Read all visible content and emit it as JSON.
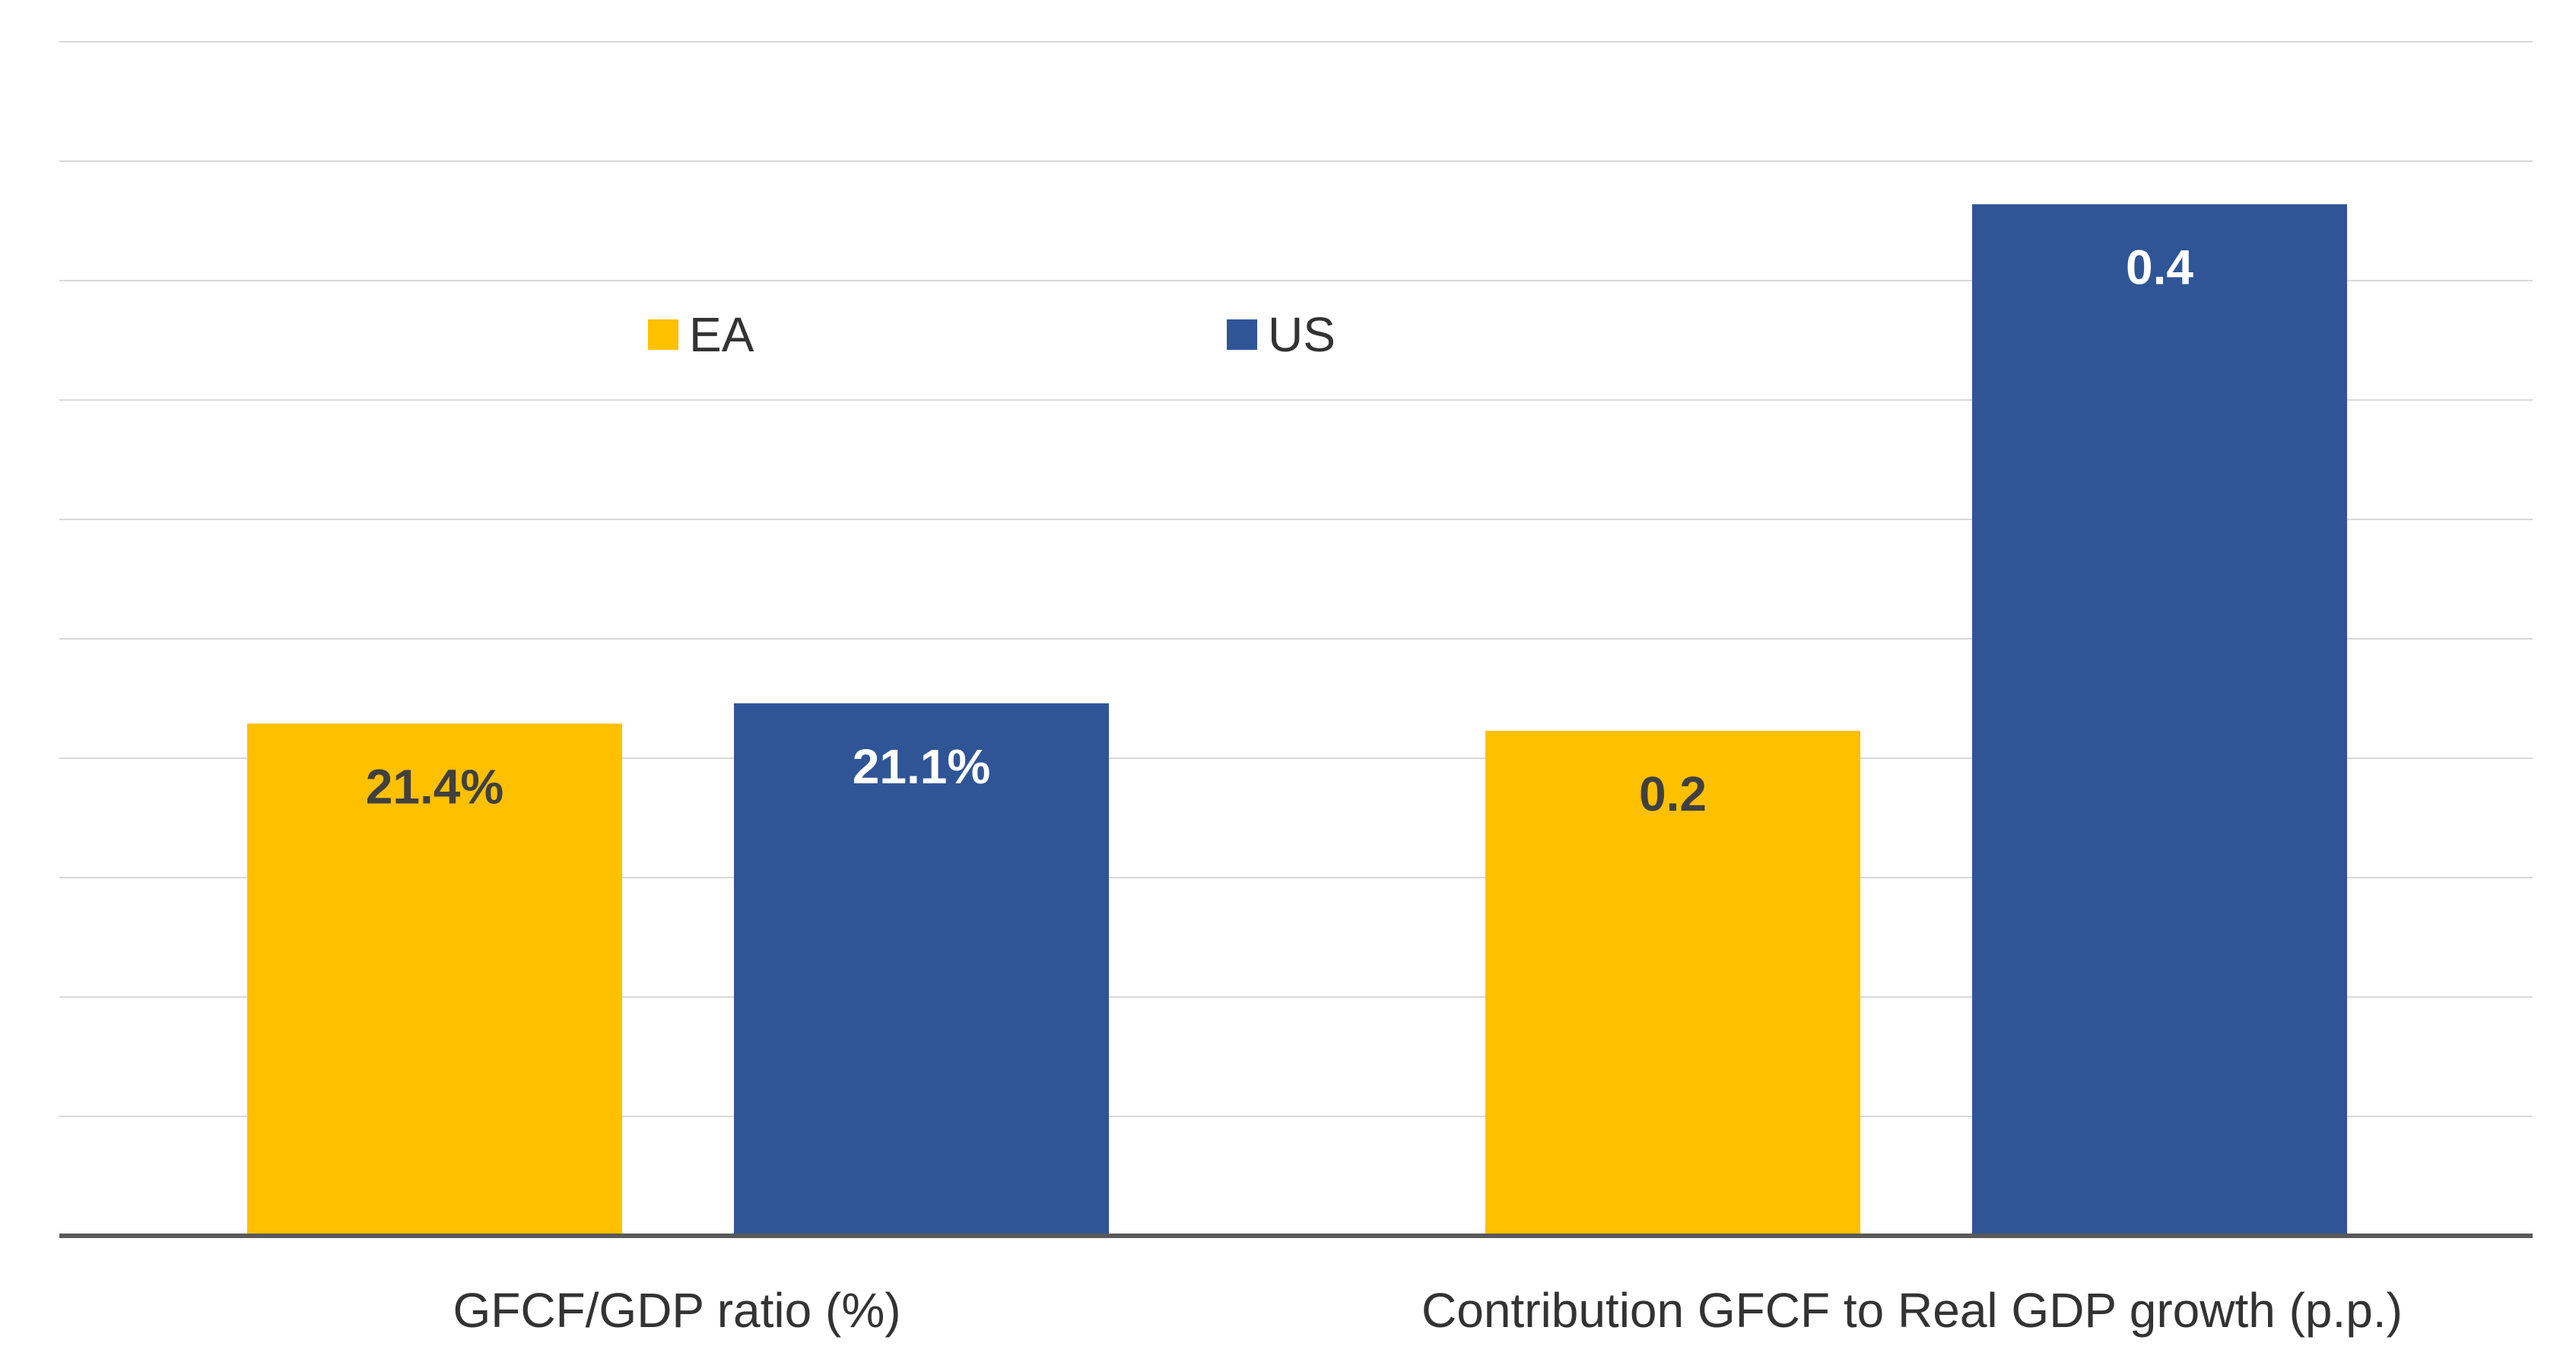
{
  "chart_data": {
    "type": "bar",
    "categories": [
      "GFCF/GDP ratio (%)",
      "Contribution GFCF to Real GDP growth (p.p.)"
    ],
    "series": [
      {
        "name": "EA",
        "color": "#FFC000",
        "values": [
          21.4,
          0.2
        ],
        "labels": [
          "21.4%",
          "0.2"
        ],
        "label_color": "#404040"
      },
      {
        "name": "US",
        "color": "#2F5597",
        "values": [
          21.1,
          0.4
        ],
        "labels": [
          "21.1%",
          "0.4"
        ],
        "label_color": "#ffffff"
      }
    ],
    "bar_fill_fraction": [
      [
        0.429,
        0.446
      ],
      [
        0.423,
        0.864
      ]
    ],
    "legend_position": "top-left",
    "grid": true,
    "title": "",
    "xlabel": "",
    "ylabel": ""
  }
}
